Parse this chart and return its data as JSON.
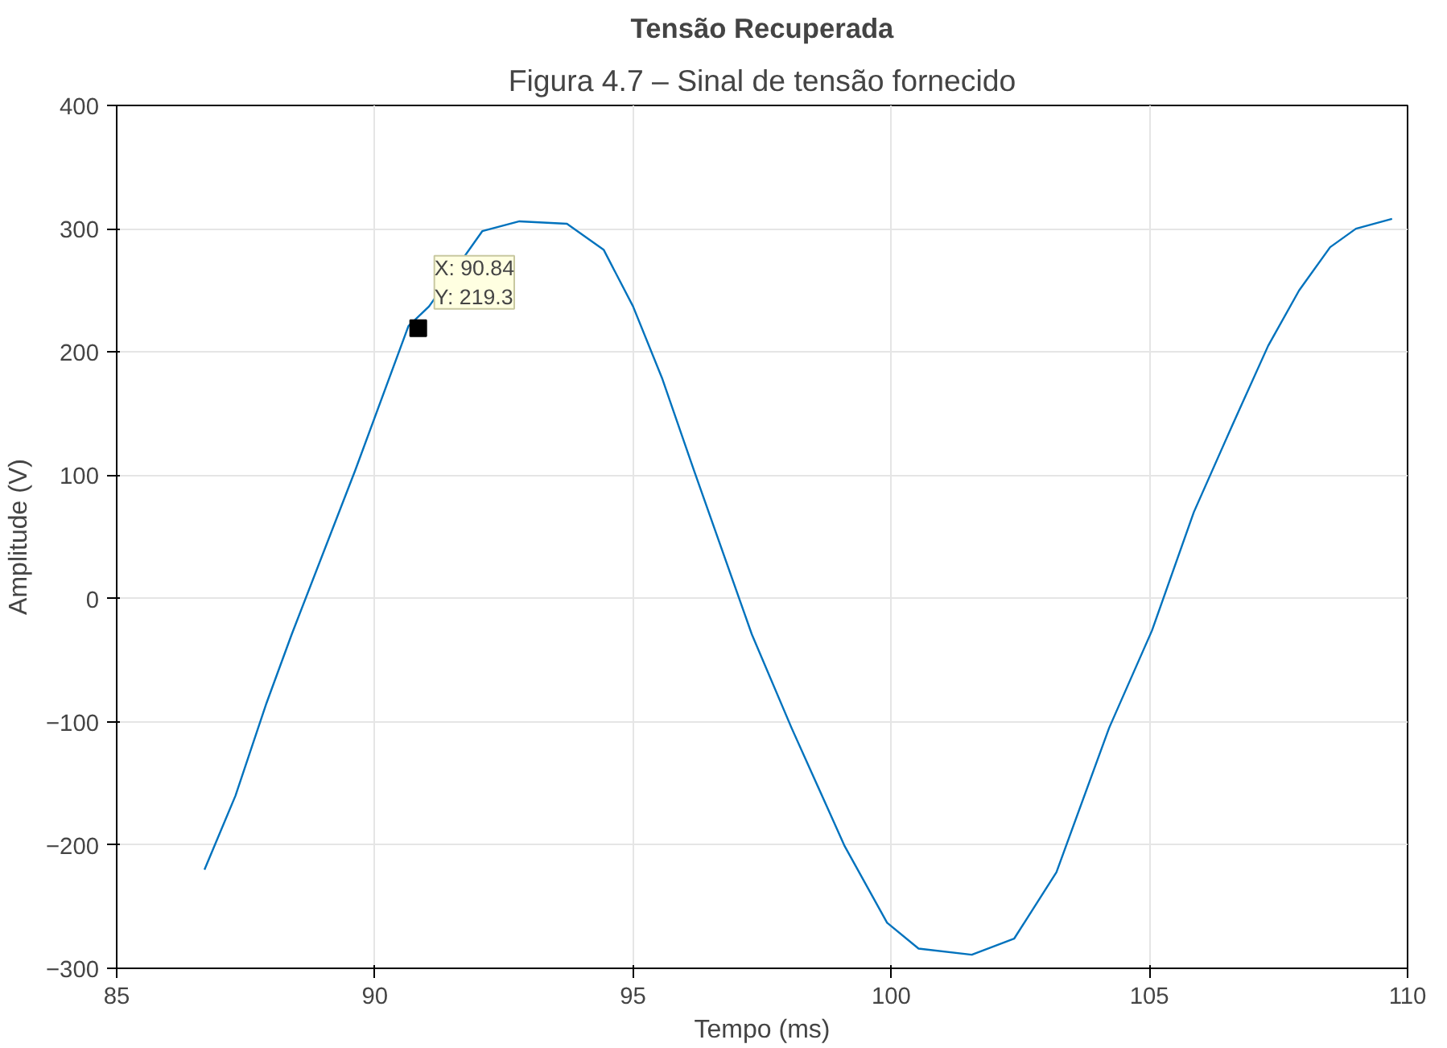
{
  "chart_data": {
    "type": "line",
    "title": "Tensão Recuperada",
    "xlabel": "Tempo (ms)",
    "ylabel": "Amplitude (V)",
    "xlim": [
      85,
      110
    ],
    "xticks": [
      85,
      90,
      95,
      100,
      105,
      110
    ],
    "ylim": [
      -300,
      400
    ],
    "yticks": [
      -300,
      -200,
      -100,
      0,
      100,
      200,
      300,
      400
    ],
    "grid": true,
    "annotations": [
      "Figura 4.7 – Sinal de tensão fornecido",
      {
        "text": "X: 90.84\nY: 219.3",
        "x": 90.84,
        "y": 219.3
      }
    ],
    "series": [
      {
        "color": "#0072bd",
        "x": [
          86.7,
          87.3,
          87.9,
          88.39,
          89.62,
          90.65,
          91.05,
          92.08,
          92.8,
          93.72,
          94.43,
          95.0,
          95.56,
          96.18,
          97.3,
          98.07,
          99.1,
          99.92,
          100.53,
          101.56,
          102.38,
          103.2,
          104.22,
          105.05,
          105.86,
          106.6,
          107.3,
          107.9,
          108.5,
          109.0,
          109.7
        ],
        "values": [
          -220,
          -160,
          -85,
          -29,
          104,
          221,
          237,
          298,
          306,
          304,
          283,
          237,
          179,
          104,
          -29,
          -105,
          -201,
          -263,
          -284,
          -289,
          -276,
          -222,
          -105,
          -26,
          70,
          140,
          205,
          250,
          285,
          300,
          308
        ]
      }
    ]
  }
}
